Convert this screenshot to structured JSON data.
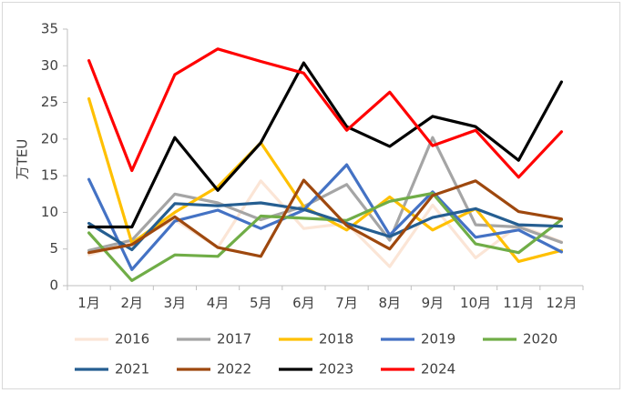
{
  "chart_data": {
    "type": "line",
    "title": "",
    "ylabel": "万TEU",
    "xlabel": "",
    "ylim": [
      0,
      35
    ],
    "yticks": [
      0,
      5,
      10,
      15,
      20,
      25,
      30,
      35
    ],
    "grid": false,
    "legend_position": "bottom",
    "categories": [
      "1月",
      "2月",
      "3月",
      "4月",
      "5月",
      "6月",
      "7月",
      "8月",
      "9月",
      "10月",
      "11月",
      "12月"
    ],
    "series": [
      {
        "name": "2016",
        "color": "#FBE5D6",
        "values": [
          4.2,
          6.0,
          9.0,
          5.2,
          14.3,
          7.8,
          8.5,
          2.6,
          11.0,
          3.8,
          8.2,
          6.0
        ]
      },
      {
        "name": "2017",
        "color": "#A5A5A5",
        "values": [
          4.8,
          6.2,
          12.5,
          11.3,
          9.0,
          10.8,
          13.8,
          6.2,
          20.2,
          8.3,
          8.0,
          5.9
        ]
      },
      {
        "name": "2018",
        "color": "#FFC000",
        "values": [
          25.5,
          5.8,
          10.0,
          13.5,
          19.5,
          10.8,
          7.6,
          12.1,
          7.6,
          10.5,
          3.3,
          4.8
        ]
      },
      {
        "name": "2019",
        "color": "#4472C4",
        "values": [
          14.5,
          2.2,
          8.8,
          10.3,
          7.8,
          10.3,
          16.5,
          6.9,
          12.8,
          6.6,
          7.6,
          4.6
        ]
      },
      {
        "name": "2020",
        "color": "#70AD47",
        "values": [
          7.2,
          0.7,
          4.2,
          4.0,
          9.5,
          9.2,
          8.9,
          11.5,
          12.6,
          5.7,
          4.5,
          9.0
        ]
      },
      {
        "name": "2021",
        "color": "#255E91",
        "values": [
          8.5,
          4.9,
          11.2,
          10.9,
          11.3,
          10.4,
          8.5,
          6.7,
          9.3,
          10.5,
          8.3,
          8.1
        ]
      },
      {
        "name": "2022",
        "color": "#9E480E",
        "values": [
          4.5,
          5.6,
          9.4,
          5.2,
          4.0,
          14.4,
          8.2,
          5.0,
          12.3,
          14.3,
          10.1,
          9.1
        ]
      },
      {
        "name": "2023",
        "color": "#000000",
        "values": [
          8.0,
          8.0,
          20.2,
          13.0,
          19.5,
          30.4,
          21.7,
          19.0,
          23.1,
          21.7,
          17.1,
          27.8
        ]
      },
      {
        "name": "2024",
        "color": "#FF0000",
        "values": [
          30.7,
          15.7,
          28.8,
          32.3,
          30.6,
          29.0,
          21.2,
          26.4,
          19.1,
          21.2,
          14.8,
          21.0
        ]
      }
    ]
  }
}
